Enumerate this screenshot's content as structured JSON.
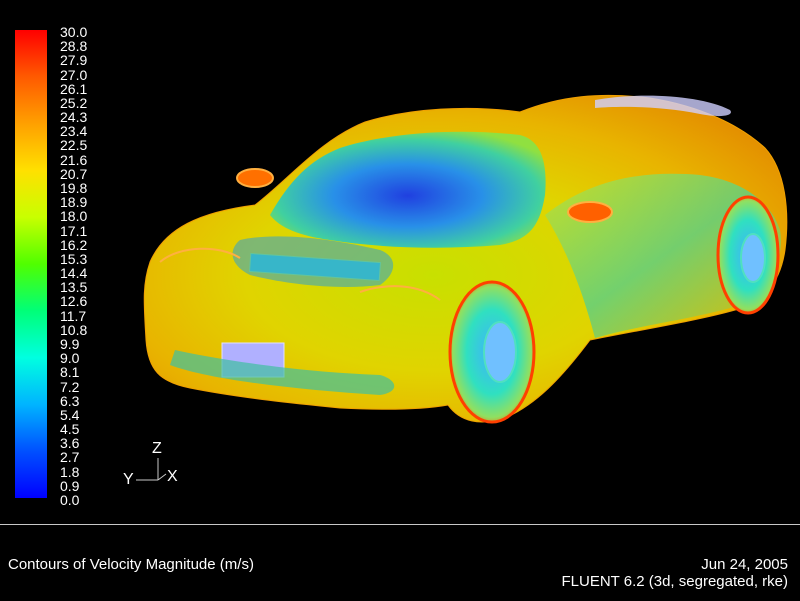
{
  "colorbar": {
    "ticks": [
      "30.0",
      "28.8",
      "27.9",
      "27.0",
      "26.1",
      "25.2",
      "24.3",
      "23.4",
      "22.5",
      "21.6",
      "20.7",
      "19.8",
      "18.9",
      "18.0",
      "17.1",
      "16.2",
      "15.3",
      "14.4",
      "13.5",
      "12.6",
      "11.7",
      "10.8",
      "9.9",
      "9.0",
      "8.1",
      "7.2",
      "6.3",
      "5.4",
      "4.5",
      "3.6",
      "2.7",
      "1.8",
      "0.9",
      "0.0"
    ],
    "colors": [
      "#ff0000",
      "#ffa000",
      "#ffe000",
      "#50ff00",
      "#00ffe0",
      "#0050ff",
      "#0000ff"
    ]
  },
  "axes": {
    "z": "Z",
    "y": "Y",
    "x": "X"
  },
  "footer": {
    "caption": "Contours of Velocity Magnitude (m/s)",
    "date": "Jun 24, 2005",
    "solver": "FLUENT 6.2 (3d, segregated, rke)"
  }
}
